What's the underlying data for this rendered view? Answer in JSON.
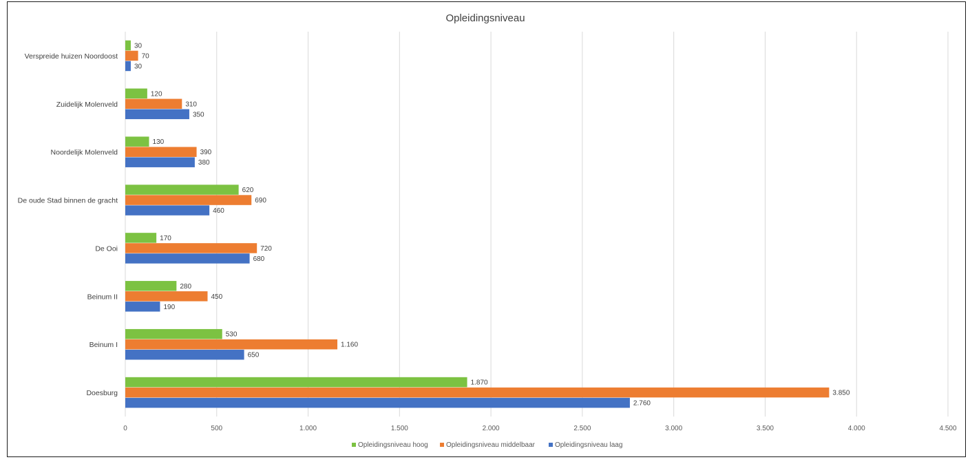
{
  "chart_data": {
    "type": "bar",
    "orientation": "horizontal",
    "title": "Opleidingsniveau",
    "categories": [
      "Verspreide huizen Noordoost",
      "Zuidelijk Molenveld",
      "Noordelijk Molenveld",
      "De oude Stad binnen de gracht",
      "De Ooi",
      "Beinum II",
      "Beinum I",
      "Doesburg"
    ],
    "series": [
      {
        "name": "Opleidingsniveau hoog",
        "color": "#7cc242",
        "values": [
          30,
          120,
          130,
          620,
          170,
          280,
          530,
          1870
        ],
        "labels": [
          "30",
          "120",
          "130",
          "620",
          "170",
          "280",
          "530",
          "1.870"
        ]
      },
      {
        "name": "Opleidingsniveau middelbaar",
        "color": "#ed7d31",
        "values": [
          70,
          310,
          390,
          690,
          720,
          450,
          1160,
          3850
        ],
        "labels": [
          "70",
          "310",
          "390",
          "690",
          "720",
          "450",
          "1.160",
          "3.850"
        ]
      },
      {
        "name": "Opleidingsniveau laag",
        "color": "#4472c4",
        "values": [
          30,
          350,
          380,
          460,
          680,
          190,
          650,
          2760
        ],
        "labels": [
          "30",
          "350",
          "380",
          "460",
          "680",
          "190",
          "650",
          "2.760"
        ]
      }
    ],
    "xlim": [
      0,
      4500
    ],
    "xticks": [
      0,
      500,
      1000,
      1500,
      2000,
      2500,
      3000,
      3500,
      4000,
      4500
    ],
    "xtick_labels": [
      "0",
      "500",
      "1.000",
      "1.500",
      "2.000",
      "2.500",
      "3.000",
      "3.500",
      "4.000",
      "4.500"
    ],
    "grid": "vertical",
    "legend": "bottom-center",
    "gridline_color": "#d9d9d9"
  }
}
